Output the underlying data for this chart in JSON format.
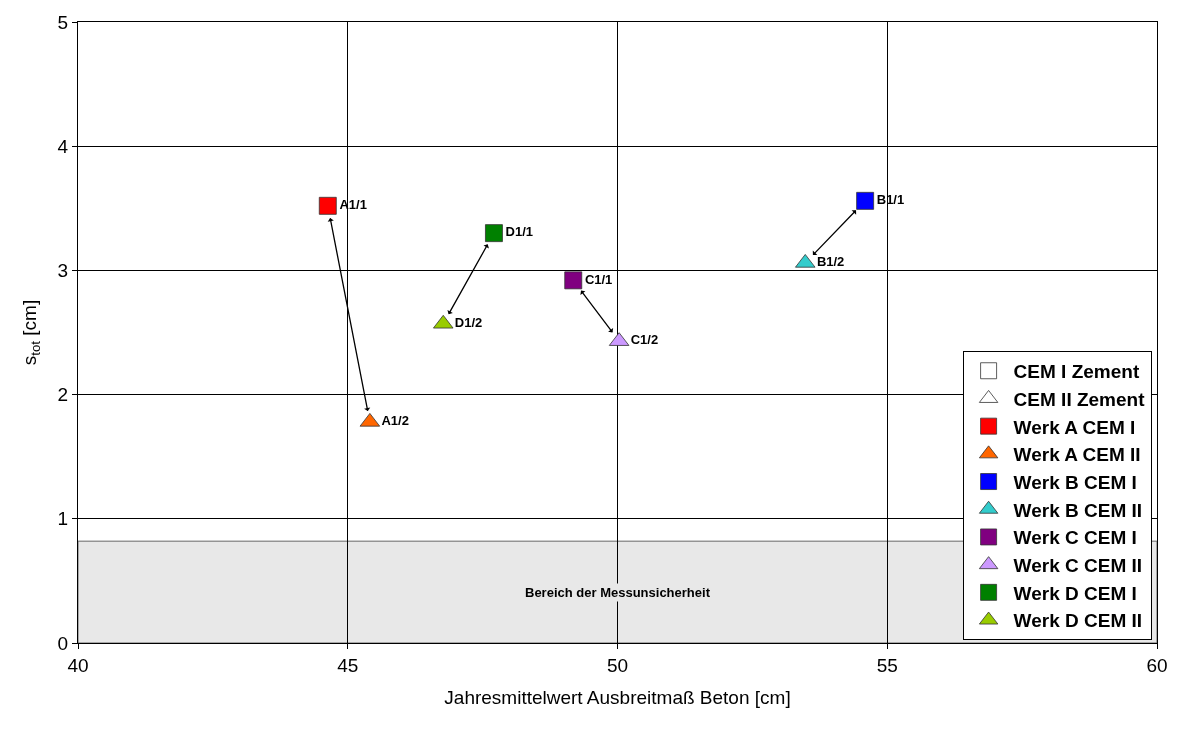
{
  "chart_data": {
    "type": "scatter",
    "xlabel": "Jahresmittelwert Ausbreitmaß Beton [cm]",
    "ylabel": "s$_{tot}$ [cm]",
    "xlim": [
      40,
      60
    ],
    "xticks": [
      40,
      45,
      50,
      55,
      60
    ],
    "ylim": [
      0,
      5
    ],
    "yticks": [
      0,
      1,
      2,
      3,
      4,
      5
    ],
    "grid": true,
    "legend": "bottom right",
    "bands": [
      {
        "axis": "y",
        "from": 0,
        "to": 0.82,
        "label": "Bereich der Messunsicherheit",
        "color": "#e8e8e8"
      }
    ],
    "series": [
      {
        "name": "CEM I Zement",
        "color": "#ffffff",
        "marker": "square",
        "x": [
          null
        ],
        "values": [
          null
        ]
      },
      {
        "name": "CEM II Zement",
        "color": "#ffffff",
        "marker": "triangle",
        "x": [
          null
        ],
        "values": [
          null
        ]
      },
      {
        "name": "Werk A CEM I",
        "color": "#ff0000",
        "marker": "square",
        "x": [
          44.63
        ],
        "values": [
          3.52
        ],
        "value_labels": [
          "A1/1"
        ]
      },
      {
        "name": "Werk A CEM II",
        "color": "#ff6600",
        "marker": "triangle",
        "x": [
          45.41
        ],
        "values": [
          1.78
        ],
        "value_labels": [
          "A1/2"
        ]
      },
      {
        "name": "Werk B CEM I",
        "color": "#0000ff",
        "marker": "square",
        "x": [
          54.59
        ],
        "values": [
          3.56
        ],
        "value_labels": [
          "B1/1"
        ]
      },
      {
        "name": "Werk B CEM II",
        "color": "#33cccc",
        "marker": "triangle",
        "x": [
          53.48
        ],
        "values": [
          3.06
        ],
        "value_labels": [
          "B1/2"
        ]
      },
      {
        "name": "Werk C CEM I",
        "color": "#800080",
        "marker": "square",
        "x": [
          49.18
        ],
        "values": [
          2.92
        ],
        "value_labels": [
          "C1/1"
        ]
      },
      {
        "name": "Werk C CEM II",
        "color": "#cc99ff",
        "marker": "triangle",
        "x": [
          50.03
        ],
        "values": [
          2.43
        ],
        "value_labels": [
          "C1/2"
        ]
      },
      {
        "name": "Werk D CEM I",
        "color": "#008000",
        "marker": "square",
        "x": [
          47.71
        ],
        "values": [
          3.3
        ],
        "value_labels": [
          "D1/1"
        ]
      },
      {
        "name": "Werk D CEM II",
        "color": "#99cc00",
        "marker": "triangle",
        "x": [
          46.77
        ],
        "values": [
          2.57
        ],
        "value_labels": [
          "D1/2"
        ]
      }
    ]
  }
}
